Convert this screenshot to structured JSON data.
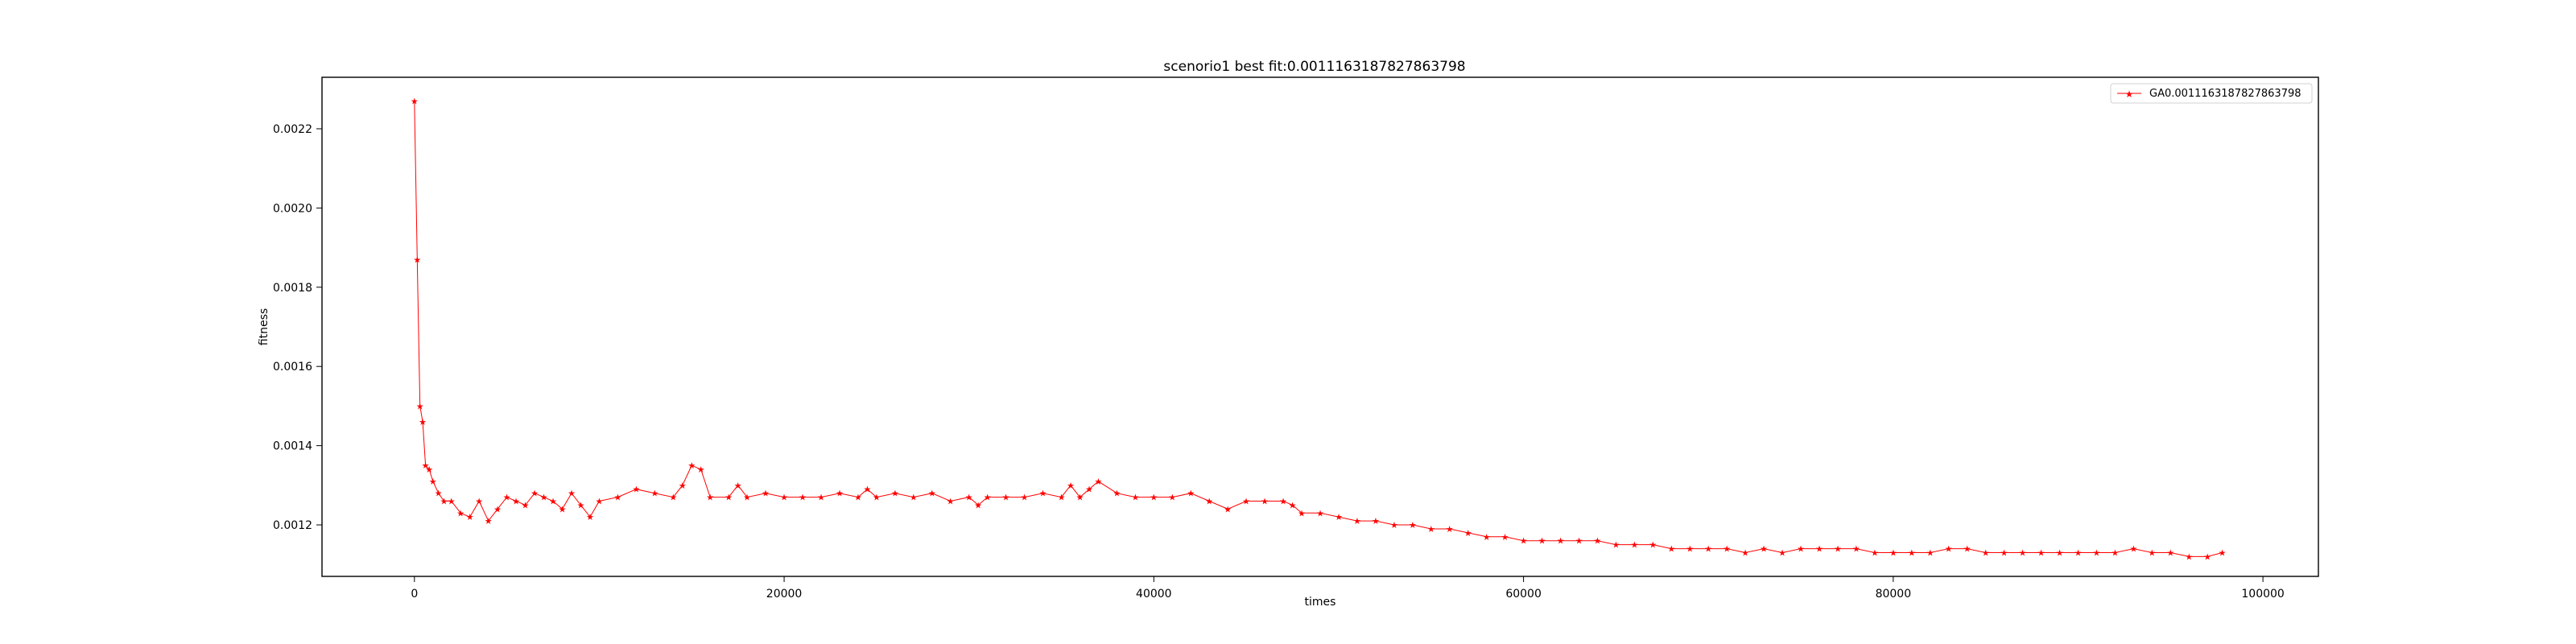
{
  "chart_data": {
    "type": "line",
    "title": "scenorio1 best fit:0.0011163187827863798",
    "xlabel": "times",
    "ylabel": "fitness",
    "xlim": [
      -5000,
      103000
    ],
    "ylim": [
      0.00107,
      0.00233
    ],
    "xticks": [
      0,
      20000,
      40000,
      60000,
      80000,
      100000
    ],
    "xtick_labels": [
      "0",
      "20000",
      "40000",
      "60000",
      "80000",
      "100000"
    ],
    "yticks": [
      0.0012,
      0.0014,
      0.0016,
      0.0018,
      0.002,
      0.0022
    ],
    "ytick_labels": [
      "0.0012",
      "0.0014",
      "0.0016",
      "0.0018",
      "0.0020",
      "0.0022"
    ],
    "grid": false,
    "legend_position": "top-right",
    "marker": "star",
    "colors": {
      "series": "#ff0000",
      "axes": "#000000",
      "background": "#ffffff"
    },
    "series": [
      {
        "name": "GA0.0011163187827863798",
        "x": [
          0,
          150,
          300,
          450,
          600,
          800,
          1000,
          1300,
          1600,
          2000,
          2500,
          3000,
          3500,
          4000,
          4500,
          5000,
          5500,
          6000,
          6500,
          7000,
          7500,
          8000,
          8500,
          9000,
          9500,
          10000,
          11000,
          12000,
          13000,
          14000,
          14500,
          15000,
          15500,
          16000,
          17000,
          17500,
          18000,
          19000,
          20000,
          21000,
          22000,
          23000,
          24000,
          24500,
          25000,
          26000,
          27000,
          28000,
          29000,
          30000,
          30500,
          31000,
          32000,
          33000,
          34000,
          35000,
          35500,
          36000,
          36500,
          37000,
          38000,
          39000,
          40000,
          41000,
          42000,
          43000,
          44000,
          45000,
          46000,
          47000,
          47500,
          48000,
          49000,
          50000,
          51000,
          52000,
          53000,
          54000,
          55000,
          56000,
          57000,
          58000,
          59000,
          60000,
          61000,
          62000,
          63000,
          64000,
          65000,
          66000,
          67000,
          68000,
          69000,
          70000,
          71000,
          72000,
          73000,
          74000,
          75000,
          76000,
          77000,
          78000,
          79000,
          80000,
          81000,
          82000,
          83000,
          84000,
          85000,
          86000,
          87000,
          88000,
          89000,
          90000,
          91000,
          92000,
          93000,
          94000,
          95000,
          96000,
          97000,
          97800
        ],
        "y": [
          0.00227,
          0.00187,
          0.0015,
          0.00146,
          0.00135,
          0.00134,
          0.00131,
          0.00128,
          0.00126,
          0.00126,
          0.00123,
          0.00122,
          0.00126,
          0.00121,
          0.00124,
          0.00127,
          0.00126,
          0.00125,
          0.00128,
          0.00127,
          0.00126,
          0.00124,
          0.00128,
          0.00125,
          0.00122,
          0.00126,
          0.00127,
          0.00129,
          0.00128,
          0.00127,
          0.0013,
          0.00135,
          0.00134,
          0.00127,
          0.00127,
          0.0013,
          0.00127,
          0.00128,
          0.00127,
          0.00127,
          0.00127,
          0.00128,
          0.00127,
          0.00129,
          0.00127,
          0.00128,
          0.00127,
          0.00128,
          0.00126,
          0.00127,
          0.00125,
          0.00127,
          0.00127,
          0.00127,
          0.00128,
          0.00127,
          0.0013,
          0.00127,
          0.00129,
          0.00131,
          0.00128,
          0.00127,
          0.00127,
          0.00127,
          0.00128,
          0.00126,
          0.00124,
          0.00126,
          0.00126,
          0.00126,
          0.00125,
          0.00123,
          0.00123,
          0.00122,
          0.00121,
          0.00121,
          0.0012,
          0.0012,
          0.00119,
          0.00119,
          0.00118,
          0.00117,
          0.00117,
          0.00116,
          0.00116,
          0.00116,
          0.00116,
          0.00116,
          0.00115,
          0.00115,
          0.00115,
          0.00114,
          0.00114,
          0.00114,
          0.00114,
          0.00113,
          0.00114,
          0.00113,
          0.00114,
          0.00114,
          0.00114,
          0.00114,
          0.00113,
          0.00113,
          0.00113,
          0.00113,
          0.00114,
          0.00114,
          0.00113,
          0.00113,
          0.00113,
          0.00113,
          0.00113,
          0.00113,
          0.00113,
          0.00113,
          0.00114,
          0.00113,
          0.00113,
          0.00112,
          0.00112,
          0.00113
        ]
      }
    ]
  }
}
